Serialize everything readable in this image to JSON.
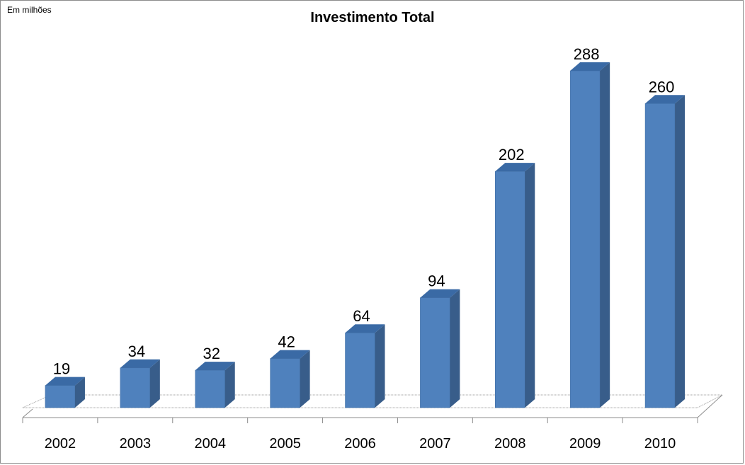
{
  "unit_label": "Em milhões",
  "chart_data": {
    "type": "bar",
    "title": "Investimento Total",
    "xlabel": "",
    "ylabel": "",
    "categories": [
      "2002",
      "2003",
      "2004",
      "2005",
      "2006",
      "2007",
      "2008",
      "2009",
      "2010"
    ],
    "values": [
      19,
      34,
      32,
      42,
      64,
      94,
      202,
      288,
      260
    ],
    "data_labels": [
      "19",
      "34",
      "32",
      "42",
      "64",
      "94",
      "202",
      "288",
      "260"
    ],
    "ylim": [
      0,
      288
    ],
    "grid": false,
    "legend": "none",
    "colors": {
      "bar_front": "#4f81bd",
      "bar_side": "#385d8a",
      "bar_top": "#3a6aa5"
    }
  }
}
